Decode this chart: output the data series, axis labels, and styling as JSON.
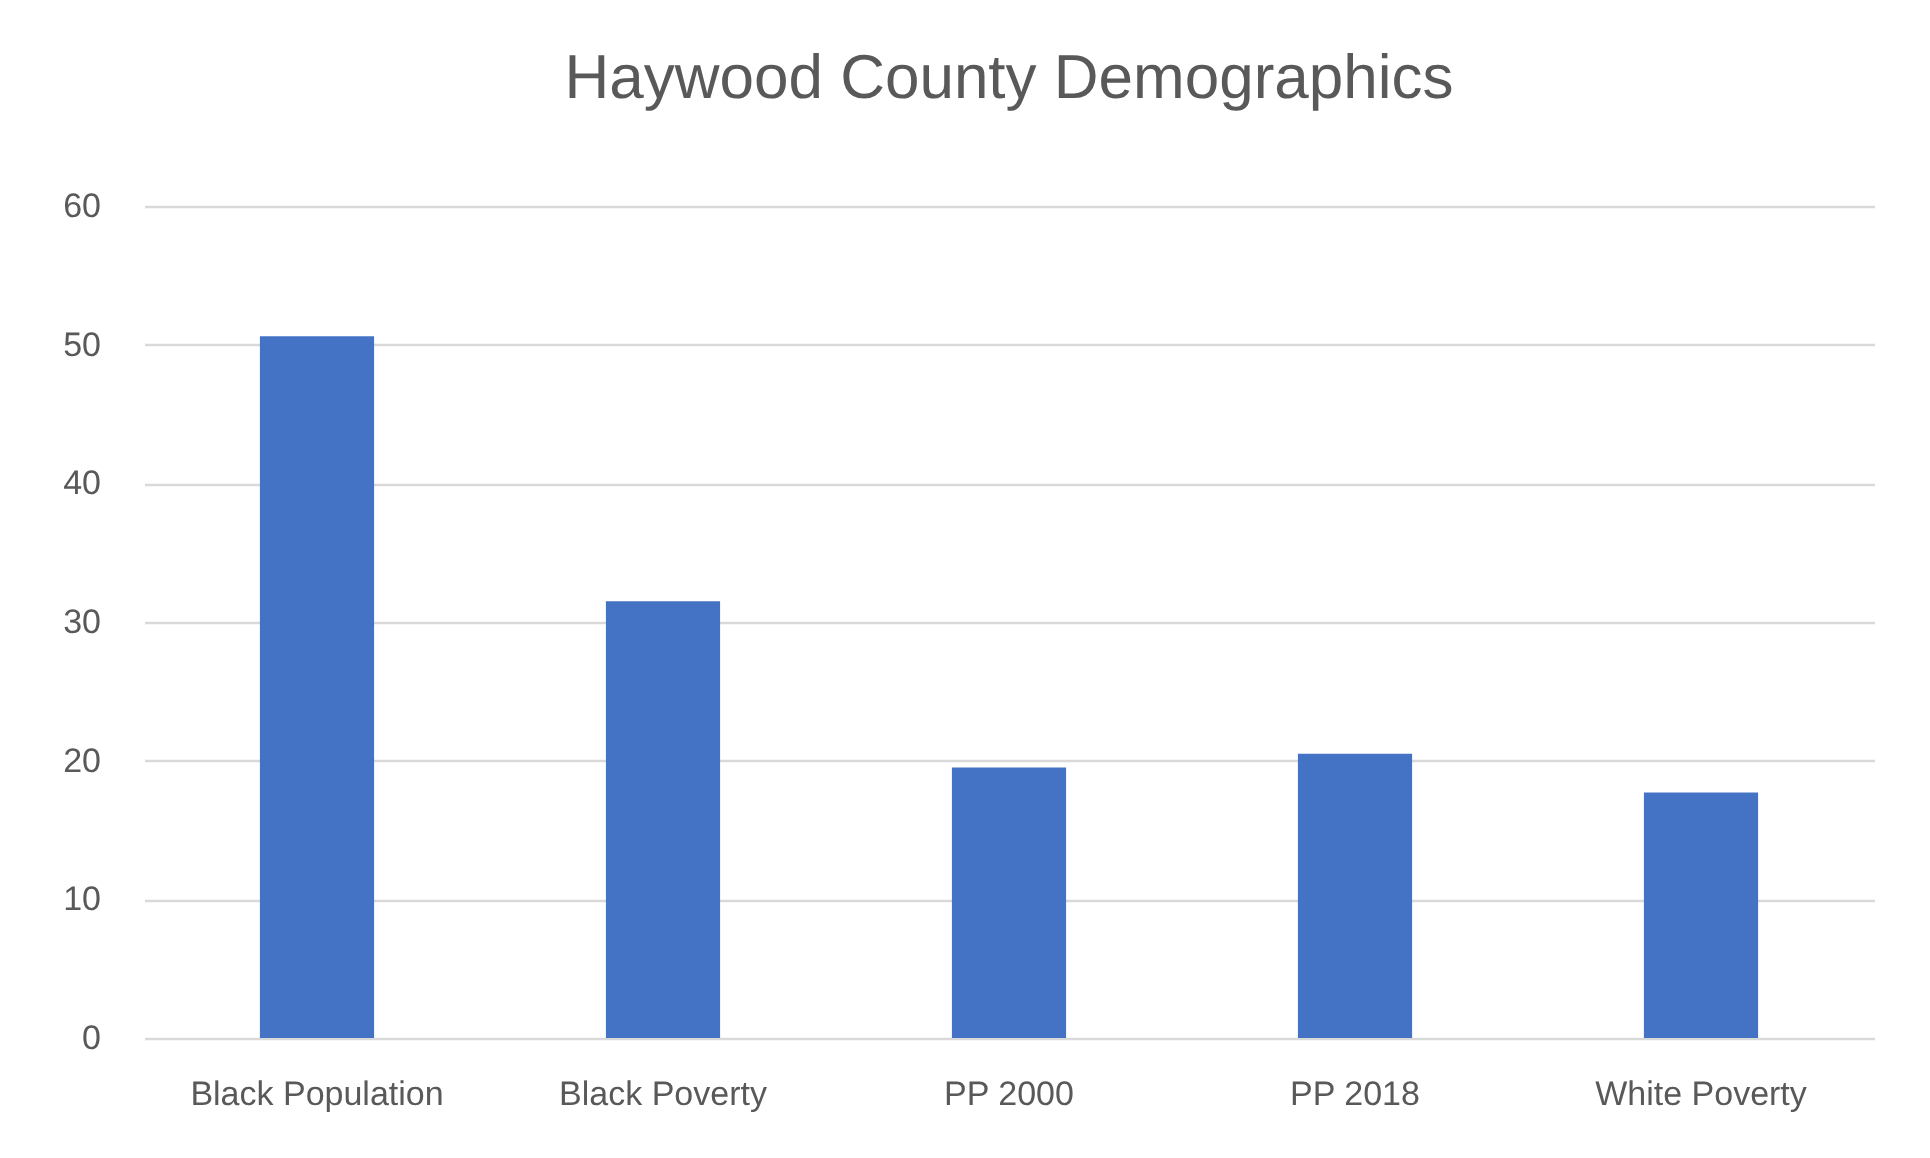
{
  "chart_data": {
    "type": "bar",
    "title": "Haywood County Demographics",
    "categories": [
      "Black Population",
      "Black Poverty",
      "PP 2000",
      "PP 2018",
      "White Poverty"
    ],
    "values": [
      50.6,
      31.5,
      19.5,
      20.5,
      17.7
    ],
    "color": "#4472c4",
    "ylim": [
      0,
      60
    ],
    "yticks": [
      0,
      10,
      20,
      30,
      40,
      50,
      60
    ],
    "grid": "y"
  }
}
